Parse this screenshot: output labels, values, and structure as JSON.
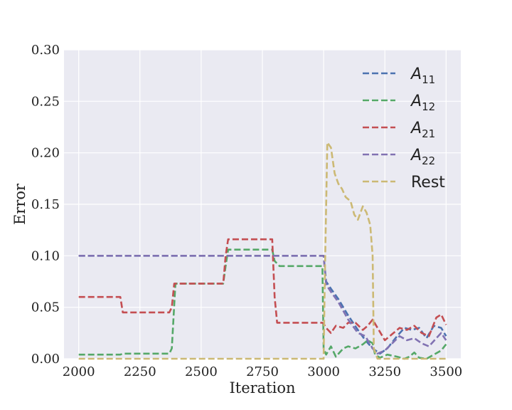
{
  "chart_data": {
    "type": "line",
    "title": "",
    "xlabel": "Iteration",
    "ylabel": "Error",
    "xlim": [
      1940,
      3560
    ],
    "ylim": [
      0.0,
      0.3
    ],
    "xticks": [
      2000,
      2250,
      2500,
      2750,
      3000,
      3250,
      3500
    ],
    "xtick_labels": [
      "2000",
      "2250",
      "2500",
      "2750",
      "3000",
      "3250",
      "3500"
    ],
    "yticks": [
      0.0,
      0.05,
      0.1,
      0.15,
      0.2,
      0.25,
      0.3
    ],
    "ytick_labels": [
      "0.00",
      "0.05",
      "0.10",
      "0.15",
      "0.20",
      "0.25",
      "0.30"
    ],
    "grid": true,
    "line_style": "dashed",
    "background": "#eaeaf2",
    "legend_position": "top-right",
    "series": [
      {
        "name": "A11",
        "legend_base": "A",
        "legend_sub": "11",
        "color": "#4c72b0",
        "x": [
          2000,
          3000,
          3010,
          3030,
          3060,
          3100,
          3140,
          3170,
          3200,
          3230,
          3260,
          3300,
          3330,
          3360,
          3390,
          3420,
          3450,
          3480,
          3500
        ],
        "y": [
          0.1,
          0.1,
          0.075,
          0.068,
          0.058,
          0.042,
          0.028,
          0.018,
          0.01,
          0.005,
          0.01,
          0.022,
          0.03,
          0.028,
          0.03,
          0.02,
          0.032,
          0.03,
          0.022
        ]
      },
      {
        "name": "A12",
        "legend_base": "A",
        "legend_sub": "12",
        "color": "#55a868",
        "x": [
          2000,
          2170,
          2180,
          2370,
          2380,
          2395,
          2590,
          2600,
          2610,
          2790,
          2800,
          2820,
          2995,
          3000,
          3010,
          3030,
          3050,
          3080,
          3100,
          3130,
          3160,
          3180,
          3200,
          3210,
          3230,
          3260,
          3300,
          3330,
          3350,
          3370,
          3390,
          3420,
          3450,
          3480,
          3500
        ],
        "y": [
          0.004,
          0.004,
          0.005,
          0.005,
          0.01,
          0.073,
          0.073,
          0.09,
          0.106,
          0.106,
          0.095,
          0.09,
          0.09,
          0.01,
          0.004,
          0.012,
          0.002,
          0.01,
          0.012,
          0.01,
          0.014,
          0.018,
          0.015,
          0.004,
          0.001,
          0.004,
          0.002,
          0.0,
          0.002,
          0.006,
          0.001,
          0.0,
          0.004,
          0.008,
          0.014
        ]
      },
      {
        "name": "A21",
        "legend_base": "A",
        "legend_sub": "21",
        "color": "#c44e52",
        "x": [
          2000,
          2170,
          2180,
          2370,
          2380,
          2390,
          2590,
          2600,
          2610,
          2790,
          2800,
          2810,
          2995,
          3000,
          3010,
          3030,
          3050,
          3080,
          3100,
          3130,
          3160,
          3180,
          3200,
          3220,
          3250,
          3280,
          3310,
          3340,
          3370,
          3400,
          3430,
          3460,
          3480,
          3500
        ],
        "y": [
          0.06,
          0.06,
          0.045,
          0.045,
          0.05,
          0.073,
          0.073,
          0.1,
          0.116,
          0.116,
          0.06,
          0.035,
          0.035,
          0.034,
          0.03,
          0.025,
          0.032,
          0.03,
          0.035,
          0.035,
          0.028,
          0.032,
          0.038,
          0.03,
          0.018,
          0.024,
          0.03,
          0.028,
          0.032,
          0.025,
          0.022,
          0.04,
          0.043,
          0.033
        ]
      },
      {
        "name": "A22",
        "legend_base": "A",
        "legend_sub": "22",
        "color": "#8172b2",
        "x": [
          2000,
          3000,
          3010,
          3030,
          3060,
          3100,
          3140,
          3170,
          3200,
          3220,
          3250,
          3280,
          3310,
          3340,
          3370,
          3400,
          3430,
          3460,
          3480,
          3500
        ],
        "y": [
          0.1,
          0.1,
          0.072,
          0.065,
          0.055,
          0.038,
          0.025,
          0.022,
          0.01,
          0.005,
          0.008,
          0.015,
          0.022,
          0.018,
          0.02,
          0.015,
          0.012,
          0.02,
          0.025,
          0.018
        ]
      },
      {
        "name": "Rest",
        "legend_base": "Rest",
        "legend_sub": "",
        "color": "#ccb974",
        "x": [
          2000,
          3000,
          3005,
          3015,
          3030,
          3045,
          3060,
          3075,
          3090,
          3110,
          3125,
          3140,
          3160,
          3175,
          3190,
          3200,
          3205,
          3220,
          3250,
          3300,
          3350,
          3400,
          3450,
          3500
        ],
        "y": [
          0.0,
          0.0,
          0.08,
          0.21,
          0.205,
          0.18,
          0.17,
          0.165,
          0.157,
          0.153,
          0.14,
          0.135,
          0.148,
          0.142,
          0.13,
          0.1,
          0.01,
          0.0,
          0.0,
          0.0,
          0.0,
          0.0,
          0.0,
          0.0
        ]
      }
    ]
  }
}
